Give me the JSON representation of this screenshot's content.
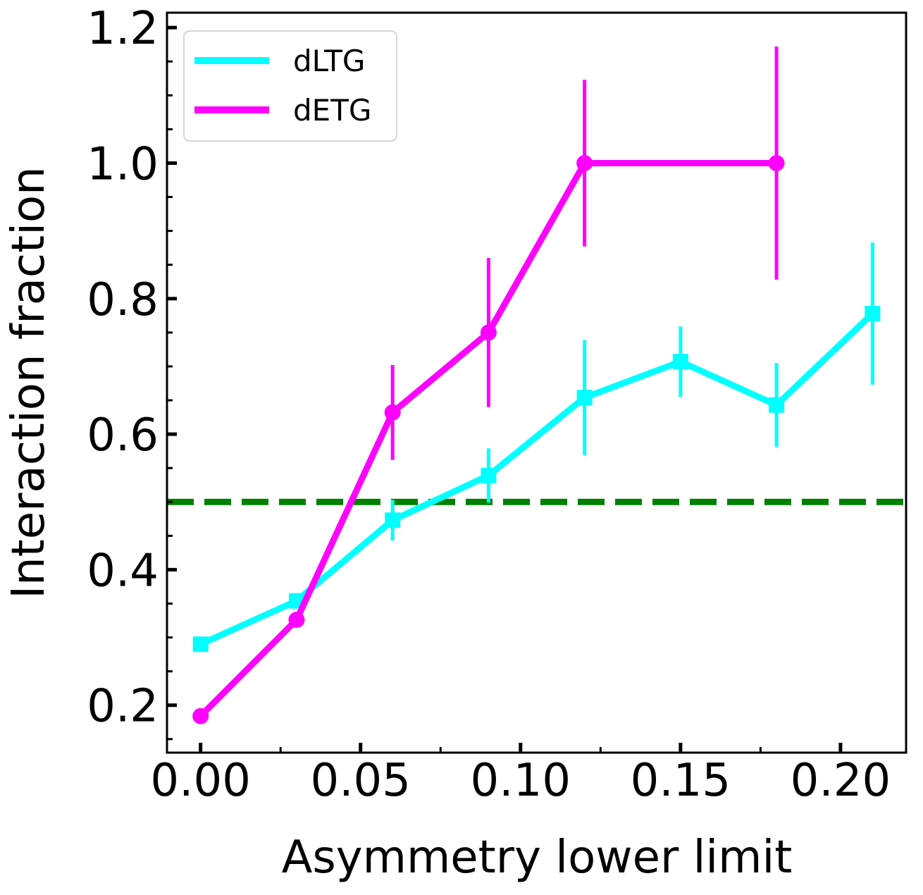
{
  "chart_data": {
    "type": "line",
    "title": "",
    "xlabel": "Asymmetry lower limit",
    "ylabel": "Interaction fraction",
    "xlim": [
      -0.0105,
      0.2205
    ],
    "ylim": [
      0.13,
      1.222
    ],
    "x_ticks": [
      0.0,
      0.05,
      0.1,
      0.15,
      0.2
    ],
    "x_tick_labels": [
      "0.00",
      "0.05",
      "0.10",
      "0.15",
      "0.20"
    ],
    "y_ticks": [
      0.2,
      0.4,
      0.6,
      0.8,
      1.0,
      1.2
    ],
    "y_tick_labels": [
      "0.2",
      "0.4",
      "0.6",
      "0.8",
      "1.0",
      "1.2"
    ],
    "legend_position": "top-left",
    "reference_line": {
      "y": 0.5,
      "color": "#008000",
      "style": "dashed"
    },
    "series": [
      {
        "name": "dLTG",
        "color": "#00ffff",
        "marker": "square",
        "x": [
          0.0,
          0.03,
          0.06,
          0.09,
          0.12,
          0.15,
          0.18,
          0.21
        ],
        "y": [
          0.29,
          0.354,
          0.473,
          0.539,
          0.654,
          0.707,
          0.643,
          0.778
        ],
        "yerr": [
          0.0,
          0.0,
          0.03,
          0.04,
          0.085,
          0.052,
          0.062,
          0.105
        ]
      },
      {
        "name": "dETG",
        "color": "#ff00ff",
        "marker": "circle",
        "x": [
          0.0,
          0.03,
          0.06,
          0.09,
          0.12,
          0.18
        ],
        "y": [
          0.184,
          0.326,
          0.632,
          0.75,
          1.0,
          1.0
        ],
        "yerr": [
          0.0,
          0.0,
          0.07,
          0.11,
          0.123,
          0.172
        ]
      }
    ]
  }
}
